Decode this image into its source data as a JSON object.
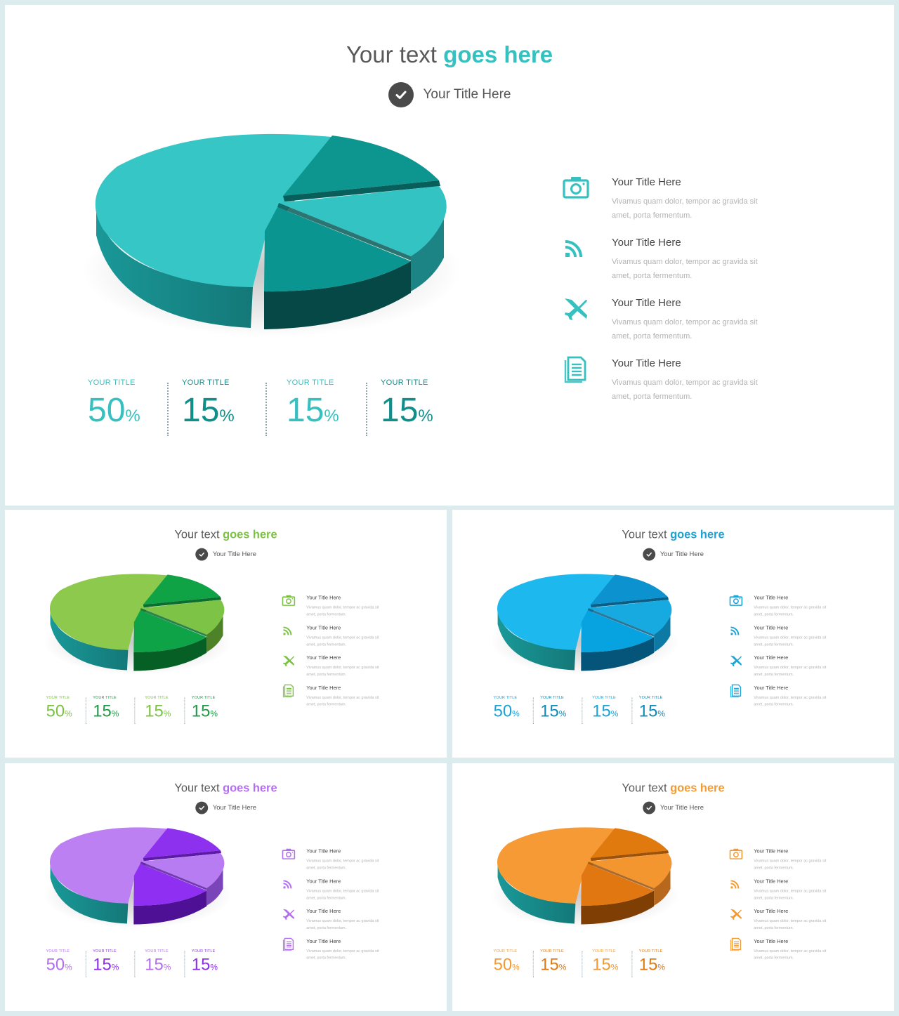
{
  "slides": [
    {
      "theme": {
        "accent": "#36c0c0",
        "stat_colors": [
          "#36c0c0",
          "#0f8e8a",
          "#36c0c0",
          "#0f8e8a"
        ],
        "pie": {
          "big_top": "#36c6c6",
          "big_side": "#1a9898",
          "big_side_dark": "#147878",
          "s1_top": "#0d9590",
          "s1_side": "#085e5b",
          "s2_top": "#33c3c3",
          "s2_side": "#1c8484",
          "s3_top": "#0a9590",
          "s3_side": "#054846"
        }
      },
      "title_plain": "Your text ",
      "title_accent": "goes here",
      "subtitle": "Your Title Here",
      "stats": [
        {
          "label": "YOUR TITLE",
          "value": "50",
          "unit": "%"
        },
        {
          "label": "YOUR TITLE",
          "value": "15",
          "unit": "%"
        },
        {
          "label": "YOUR TITLE",
          "value": "15",
          "unit": "%"
        },
        {
          "label": "YOUR TITLE",
          "value": "15",
          "unit": "%"
        }
      ],
      "features": [
        {
          "icon": "camera-icon",
          "title": "Your Title Here",
          "desc": "Vivamus quam dolor, tempor ac gravida sit amet, porta fermentum."
        },
        {
          "icon": "rss-icon",
          "title": "Your Title Here",
          "desc": "Vivamus quam dolor, tempor ac gravida sit amet, porta fermentum."
        },
        {
          "icon": "airplane-icon",
          "title": "Your Title Here",
          "desc": "Vivamus quam dolor, tempor ac gravida sit amet, porta fermentum."
        },
        {
          "icon": "document-icon",
          "title": "Your Title Here",
          "desc": "Vivamus quam dolor, tempor ac gravida sit amet, porta fermentum."
        }
      ]
    },
    {
      "theme": {
        "accent": "#7cc242",
        "stat_colors": [
          "#7cc242",
          "#1f9a47",
          "#7cc242",
          "#1f9a47"
        ],
        "pie": {
          "big_top": "#8dc94c",
          "big_side": "#6aa52e",
          "big_side_dark": "#4f7e20",
          "s1_top": "#10a345",
          "s1_side": "#0a6e2e",
          "s2_top": "#7dc346",
          "s2_side": "#4e8228",
          "s3_top": "#0ea347",
          "s3_side": "#066026"
        }
      },
      "title_plain": "Your text ",
      "title_accent": "goes here",
      "subtitle": "Your Title Here",
      "stats": [
        {
          "label": "YOUR TITLE",
          "value": "50",
          "unit": "%"
        },
        {
          "label": "YOUR TITLE",
          "value": "15",
          "unit": "%"
        },
        {
          "label": "YOUR TITLE",
          "value": "15",
          "unit": "%"
        },
        {
          "label": "YOUR TITLE",
          "value": "15",
          "unit": "%"
        }
      ],
      "features": [
        {
          "icon": "camera-icon",
          "title": "Your Title Here",
          "desc": "Vivamus quam dolor, tempor ac gravida sit amet, porta fermentum."
        },
        {
          "icon": "rss-icon",
          "title": "Your Title Here",
          "desc": "Vivamus quam dolor, tempor ac gravida sit amet, porta fermentum."
        },
        {
          "icon": "airplane-icon",
          "title": "Your Title Here",
          "desc": "Vivamus quam dolor, tempor ac gravida sit amet, porta fermentum."
        },
        {
          "icon": "document-icon",
          "title": "Your Title Here",
          "desc": "Vivamus quam dolor, tempor ac gravida sit amet, porta fermentum."
        }
      ]
    },
    {
      "theme": {
        "accent": "#1ba3d8",
        "stat_colors": [
          "#1ba3d8",
          "#0e8ab8",
          "#1ba3d8",
          "#0e8ab8"
        ],
        "pie": {
          "big_top": "#1cb8ee",
          "big_side": "#1595c4",
          "big_side_dark": "#0f6f95",
          "s1_top": "#0c93cf",
          "s1_side": "#075f88",
          "s2_top": "#17aae0",
          "s2_side": "#0d7aa6",
          "s3_top": "#06a3e0",
          "s3_side": "#05557a"
        }
      },
      "title_plain": "Your text ",
      "title_accent": "goes here",
      "subtitle": "Your Title Here",
      "stats": [
        {
          "label": "YOUR TITLE",
          "value": "50",
          "unit": "%"
        },
        {
          "label": "YOUR TITLE",
          "value": "15",
          "unit": "%"
        },
        {
          "label": "YOUR TITLE",
          "value": "15",
          "unit": "%"
        },
        {
          "label": "YOUR TITLE",
          "value": "15",
          "unit": "%"
        }
      ],
      "features": [
        {
          "icon": "camera-icon",
          "title": "Your Title Here",
          "desc": "Vivamus quam dolor, tempor ac gravida sit amet, porta fermentum."
        },
        {
          "icon": "rss-icon",
          "title": "Your Title Here",
          "desc": "Vivamus quam dolor, tempor ac gravida sit amet, porta fermentum."
        },
        {
          "icon": "airplane-icon",
          "title": "Your Title Here",
          "desc": "Vivamus quam dolor, tempor ac gravida sit amet, porta fermentum."
        },
        {
          "icon": "document-icon",
          "title": "Your Title Here",
          "desc": "Vivamus quam dolor, tempor ac gravida sit amet, porta fermentum."
        }
      ]
    },
    {
      "theme": {
        "accent": "#b36ef0",
        "stat_colors": [
          "#b36ef0",
          "#8d2ee8",
          "#b36ef0",
          "#8d2ee8"
        ],
        "pie": {
          "big_top": "#bd80f3",
          "big_side": "#9b5bd4",
          "big_side_dark": "#7640a8",
          "s1_top": "#8d31ee",
          "s1_side": "#5c1aa6",
          "s2_top": "#b77cf2",
          "s2_side": "#7a45b8",
          "s3_top": "#8f2ff2",
          "s3_side": "#4e1196"
        }
      },
      "title_plain": "Your text ",
      "title_accent": "goes here",
      "subtitle": "Your Title Here",
      "stats": [
        {
          "label": "YOUR TITLE",
          "value": "50",
          "unit": "%"
        },
        {
          "label": "YOUR TITLE",
          "value": "15",
          "unit": "%"
        },
        {
          "label": "YOUR TITLE",
          "value": "15",
          "unit": "%"
        },
        {
          "label": "YOUR TITLE",
          "value": "15",
          "unit": "%"
        }
      ],
      "features": [
        {
          "icon": "camera-icon",
          "title": "Your Title Here",
          "desc": "Vivamus quam dolor, tempor ac gravida sit amet, porta fermentum."
        },
        {
          "icon": "rss-icon",
          "title": "Your Title Here",
          "desc": "Vivamus quam dolor, tempor ac gravida sit amet, porta fermentum."
        },
        {
          "icon": "airplane-icon",
          "title": "Your Title Here",
          "desc": "Vivamus quam dolor, tempor ac gravida sit amet, porta fermentum."
        },
        {
          "icon": "document-icon",
          "title": "Your Title Here",
          "desc": "Vivamus quam dolor, tempor ac gravida sit amet, porta fermentum."
        }
      ]
    },
    {
      "theme": {
        "accent": "#f39a32",
        "stat_colors": [
          "#f39a32",
          "#de7a12",
          "#f39a32",
          "#de7a12"
        ],
        "pie": {
          "big_top": "#f69a36",
          "big_side": "#d47d22",
          "big_side_dark": "#a85e14",
          "s1_top": "#e0790e",
          "s1_side": "#9e5208",
          "s2_top": "#f4962f",
          "s2_side": "#b8681c",
          "s3_top": "#e17710",
          "s3_side": "#7f3f04"
        }
      },
      "title_plain": "Your text ",
      "title_accent": "goes here",
      "subtitle": "Your Title Here",
      "stats": [
        {
          "label": "YOUR TITLE",
          "value": "50",
          "unit": "%"
        },
        {
          "label": "YOUR TITLE",
          "value": "15",
          "unit": "%"
        },
        {
          "label": "YOUR TITLE",
          "value": "15",
          "unit": "%"
        },
        {
          "label": "YOUR TITLE",
          "value": "15",
          "unit": "%"
        }
      ],
      "features": [
        {
          "icon": "camera-icon",
          "title": "Your Title Here",
          "desc": "Vivamus quam dolor, tempor ac gravida sit amet, porta fermentum."
        },
        {
          "icon": "rss-icon",
          "title": "Your Title Here",
          "desc": "Vivamus quam dolor, tempor ac gravida sit amet, porta fermentum."
        },
        {
          "icon": "airplane-icon",
          "title": "Your Title Here",
          "desc": "Vivamus quam dolor, tempor ac gravida sit amet, porta fermentum."
        },
        {
          "icon": "document-icon",
          "title": "Your Title Here",
          "desc": "Vivamus quam dolor, tempor ac gravida sit amet, porta fermentum."
        }
      ]
    }
  ]
}
